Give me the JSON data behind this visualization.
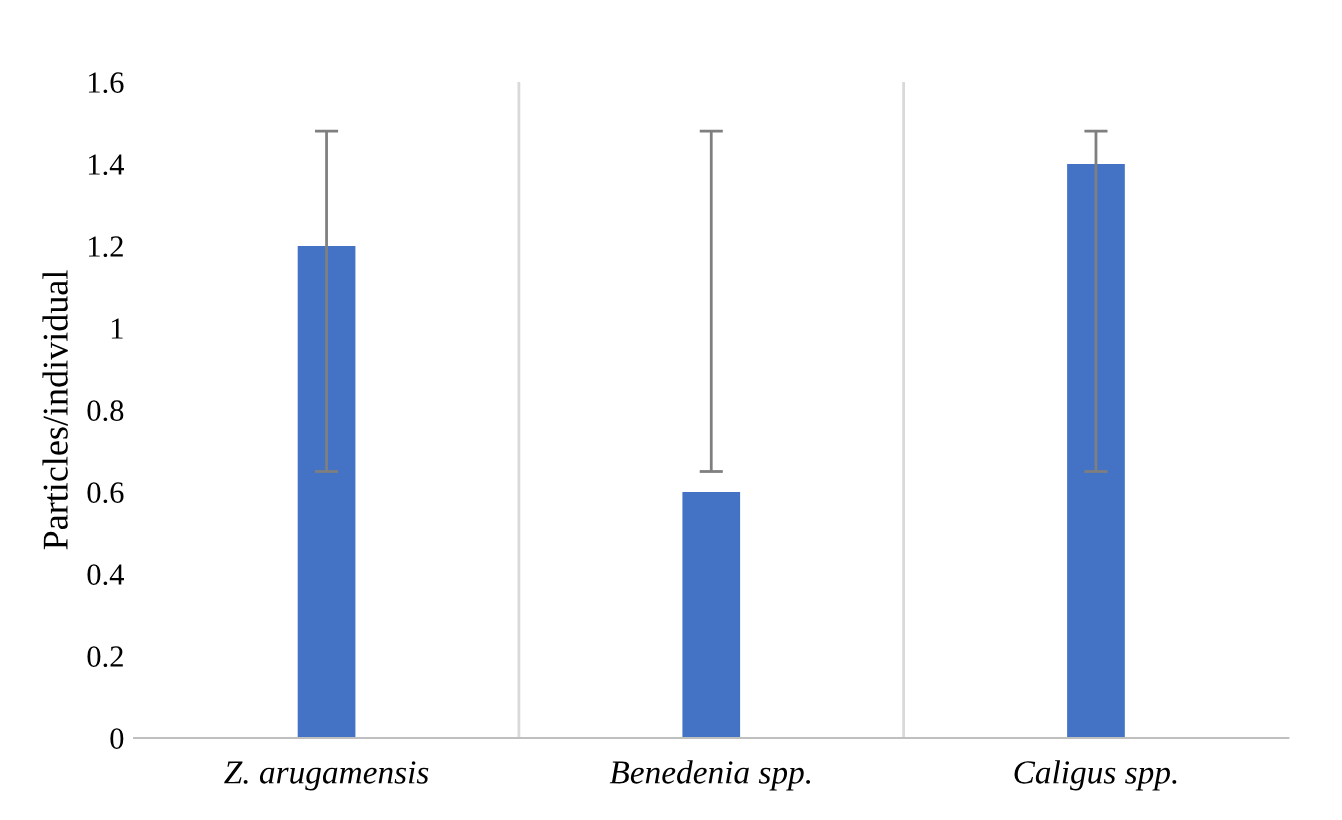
{
  "chart_data": {
    "type": "bar",
    "categories": [
      "Z. arugamensis",
      "Benedenia spp.",
      "Caligus spp."
    ],
    "values": [
      1.2,
      0.6,
      1.4
    ],
    "errors": [
      [
        0.65,
        1.48
      ],
      [
        0.65,
        1.48
      ],
      [
        0.65,
        1.48
      ]
    ],
    "color": "#4472c4",
    "ylabel": "Particles/individual",
    "ylim": [
      0,
      1.6
    ],
    "yticks": [
      0,
      0.2,
      0.4,
      0.6,
      0.8,
      1,
      1.2,
      1.4,
      1.6
    ],
    "grid": "x"
  }
}
